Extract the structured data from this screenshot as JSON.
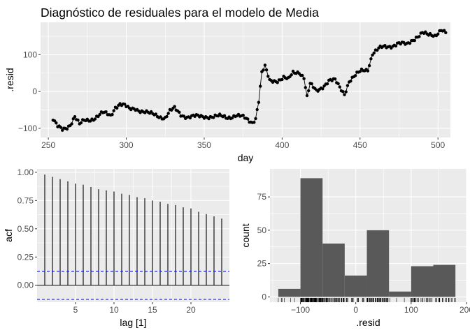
{
  "title": "Diagnóstico de residuales para el modelo de Media",
  "colors": {
    "panel": "#ebebeb",
    "grid": "#ffffff",
    "ink": "#000000",
    "bar": "#595959",
    "ci": "#0000cd",
    "tick": "#4d4d4d"
  },
  "chart_data": [
    {
      "type": "line",
      "subtype": "line with point markers",
      "xlabel": "day",
      "ylabel": ".resid",
      "xlim": [
        245,
        508
      ],
      "ylim": [
        -125,
        188
      ],
      "xticks": [
        250,
        300,
        350,
        400,
        450,
        500
      ],
      "yticks": [
        -100,
        0,
        100
      ],
      "grid": true,
      "anchors": [
        [
          253,
          -78
        ],
        [
          256,
          -98
        ],
        [
          259,
          -104
        ],
        [
          262,
          -95
        ],
        [
          264,
          -88
        ],
        [
          267,
          -68
        ],
        [
          270,
          -92
        ],
        [
          273,
          -80
        ],
        [
          276,
          -76
        ],
        [
          280,
          -70
        ],
        [
          285,
          -60
        ],
        [
          290,
          -65
        ],
        [
          293,
          -40
        ],
        [
          296,
          -33
        ],
        [
          299,
          -40
        ],
        [
          302,
          -50
        ],
        [
          306,
          -45
        ],
        [
          310,
          -52
        ],
        [
          315,
          -62
        ],
        [
          320,
          -65
        ],
        [
          325,
          -70
        ],
        [
          328,
          -55
        ],
        [
          331,
          -48
        ],
        [
          335,
          -62
        ],
        [
          340,
          -68
        ],
        [
          346,
          -70
        ],
        [
          352,
          -66
        ],
        [
          358,
          -69
        ],
        [
          364,
          -70
        ],
        [
          370,
          -64
        ],
        [
          375,
          -72
        ],
        [
          378,
          -78
        ],
        [
          381,
          -82
        ],
        [
          383,
          -70
        ],
        [
          385,
          -25
        ],
        [
          387,
          50
        ],
        [
          389,
          65
        ],
        [
          392,
          28
        ],
        [
          397,
          32
        ],
        [
          401,
          38
        ],
        [
          404,
          30
        ],
        [
          407,
          50
        ],
        [
          411,
          55
        ],
        [
          414,
          40
        ],
        [
          416,
          -15
        ],
        [
          418,
          18
        ],
        [
          422,
          0
        ],
        [
          426,
          15
        ],
        [
          430,
          30
        ],
        [
          434,
          28
        ],
        [
          437,
          10
        ],
        [
          440,
          -5
        ],
        [
          443,
          30
        ],
        [
          447,
          42
        ],
        [
          451,
          55
        ],
        [
          455,
          62
        ],
        [
          458,
          105
        ],
        [
          462,
          115
        ],
        [
          468,
          122
        ],
        [
          474,
          132
        ],
        [
          480,
          125
        ],
        [
          486,
          150
        ],
        [
          490,
          160
        ],
        [
          494,
          150
        ],
        [
          498,
          152
        ],
        [
          502,
          172
        ],
        [
          505,
          160
        ]
      ]
    },
    {
      "type": "bar",
      "subtype": "acf",
      "xlabel": "lag [1]",
      "ylabel": "acf",
      "lags": [
        1,
        2,
        3,
        4,
        5,
        6,
        7,
        8,
        9,
        10,
        11,
        12,
        13,
        14,
        15,
        16,
        17,
        18,
        19,
        20,
        21,
        22,
        23,
        24
      ],
      "values": [
        0.98,
        0.96,
        0.94,
        0.92,
        0.9,
        0.89,
        0.87,
        0.85,
        0.84,
        0.83,
        0.81,
        0.8,
        0.78,
        0.77,
        0.75,
        0.74,
        0.72,
        0.71,
        0.69,
        0.68,
        0.65,
        0.63,
        0.61,
        0.59
      ],
      "ci": 0.125,
      "xlim": [
        0,
        25
      ],
      "ylim": [
        -0.15,
        1.03
      ],
      "xticks": [
        5,
        10,
        15,
        20
      ],
      "yticks": [
        0.0,
        0.25,
        0.5,
        0.75,
        1.0
      ],
      "ytick_labels": [
        "0.00",
        "0.25",
        "0.50",
        "0.75",
        "1.00"
      ],
      "grid": true
    },
    {
      "type": "bar",
      "subtype": "histogram with rug",
      "xlabel": ".resid",
      "ylabel": "count",
      "bins": [
        {
          "from": -140,
          "to": -100,
          "count": 6
        },
        {
          "from": -100,
          "to": -60,
          "count": 89
        },
        {
          "from": -60,
          "to": -20,
          "count": 40
        },
        {
          "from": -20,
          "to": 20,
          "count": 16
        },
        {
          "from": 20,
          "to": 60,
          "count": 50
        },
        {
          "from": 60,
          "to": 100,
          "count": 4
        },
        {
          "from": 100,
          "to": 140,
          "count": 23
        },
        {
          "from": 140,
          "to": 180,
          "count": 24
        }
      ],
      "xlim": [
        -155,
        200
      ],
      "ylim": [
        -4,
        96
      ],
      "xticks": [
        -100,
        0,
        100,
        200
      ],
      "yticks": [
        0,
        25,
        50,
        75
      ],
      "grid": true
    }
  ]
}
